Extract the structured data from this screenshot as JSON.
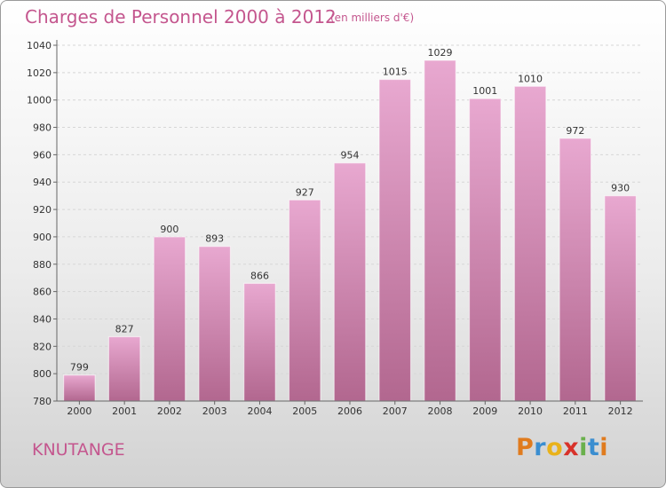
{
  "header": {
    "title": "Charges de Personnel 2000 à 2012",
    "subtitle": "(en milliers d'€)"
  },
  "footer": {
    "place": "KNUTANGE",
    "brand_letters": [
      "P",
      "r",
      "o",
      "x",
      "i",
      "t",
      "i"
    ],
    "brand_colors": [
      "#e07b1e",
      "#3b8ed0",
      "#e9b21a",
      "#d8322a",
      "#6ab04c",
      "#3b8ed0",
      "#e07b1e"
    ]
  },
  "colors": {
    "bar_top": "#e8a8d0",
    "bar_bottom": "#b2678f",
    "text": "#c4568e"
  },
  "chart_data": {
    "type": "bar",
    "title": "Charges de Personnel 2000 à 2012",
    "subtitle": "(en milliers d'€)",
    "categories": [
      "2000",
      "2001",
      "2002",
      "2003",
      "2004",
      "2005",
      "2006",
      "2007",
      "2008",
      "2009",
      "2010",
      "2011",
      "2012"
    ],
    "values": [
      799,
      827,
      900,
      893,
      866,
      927,
      954,
      1015,
      1029,
      1001,
      1010,
      972,
      930
    ],
    "ylim": [
      780,
      1040
    ],
    "yticks": [
      780,
      800,
      820,
      840,
      860,
      880,
      900,
      920,
      940,
      960,
      980,
      1000,
      1020,
      1040
    ],
    "grid": true,
    "legend": "none"
  }
}
